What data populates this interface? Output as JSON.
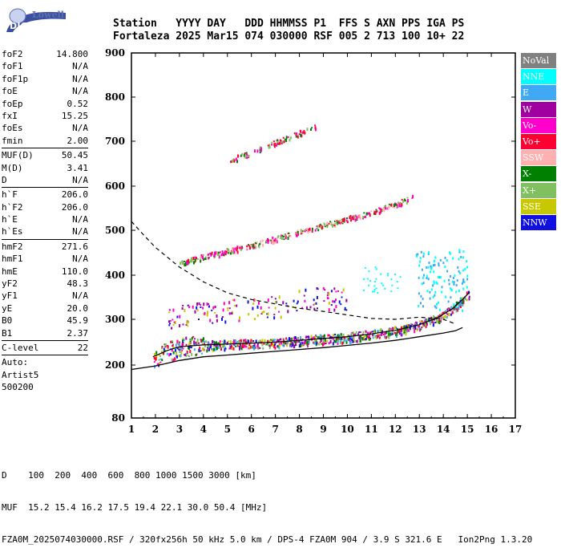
{
  "logo": {
    "top": "Lowell",
    "bottom": "DIGISONDE"
  },
  "header": {
    "labels": "Station   YYYY DAY   DDD HHMMSS P1  FFS S AXN PPS IGA PS",
    "values": "Fortaleza 2025 Mar15 074 030000 RSF 005 2 713 100 10+ 22"
  },
  "params": {
    "group1": [
      {
        "k": "foF2",
        "v": "14.800"
      },
      {
        "k": "foF1",
        "v": "N/A"
      },
      {
        "k": "foF1p",
        "v": "N/A"
      },
      {
        "k": "foE",
        "v": "N/A"
      },
      {
        "k": "foEp",
        "v": "0.52"
      },
      {
        "k": "fxI",
        "v": "15.25"
      },
      {
        "k": "foEs",
        "v": "N/A"
      },
      {
        "k": "fmin",
        "v": "2.00"
      }
    ],
    "group2": [
      {
        "k": "MUF(D)",
        "v": "50.45"
      },
      {
        "k": "M(D)",
        "v": "3.41"
      },
      {
        "k": "D",
        "v": "N/A"
      }
    ],
    "group3": [
      {
        "k": "h`F",
        "v": "206.0"
      },
      {
        "k": "h`F2",
        "v": "206.0"
      },
      {
        "k": "h`E",
        "v": "N/A"
      },
      {
        "k": "h`Es",
        "v": "N/A"
      }
    ],
    "group4": [
      {
        "k": "hmF2",
        "v": "271.6"
      },
      {
        "k": "hmF1",
        "v": "N/A"
      },
      {
        "k": "hmE",
        "v": "110.0"
      },
      {
        "k": "yF2",
        "v": "48.3"
      },
      {
        "k": "yF1",
        "v": "N/A"
      },
      {
        "k": "yE",
        "v": "20.0"
      },
      {
        "k": "B0",
        "v": "45.9"
      },
      {
        "k": "B1",
        "v": "2.37"
      }
    ],
    "group5": [
      {
        "k": "C-level",
        "v": "22"
      }
    ],
    "auto": [
      "Auto:",
      "Artist5",
      "500200"
    ]
  },
  "legend": [
    {
      "label": "NoVal",
      "color": "#808080"
    },
    {
      "label": "NNE",
      "color": "#00ffff"
    },
    {
      "label": "E",
      "color": "#3fa9f5"
    },
    {
      "label": "W",
      "color": "#a000a0"
    },
    {
      "label": "Vo-",
      "color": "#ff00cc"
    },
    {
      "label": "Vo+",
      "color": "#ff0033"
    },
    {
      "label": "SSW",
      "color": "#ffb0b0"
    },
    {
      "label": "X-",
      "color": "#008000"
    },
    {
      "label": "X+",
      "color": "#80c060"
    },
    {
      "label": "SSE",
      "color": "#c8c800"
    },
    {
      "label": "NNW",
      "color": "#1010e0"
    }
  ],
  "footer": {
    "d_row": "D    100  200  400  600  800 1000 1500 3000 [km]",
    "muf_row": "MUF  15.2 15.4 16.2 17.5 19.4 22.1 30.0 50.4 [MHz]",
    "file_row": "FZA0M_2025074030000.RSF / 320fx256h 50 kHz 5.0 km / DPS-4 FZA0M 904 / 3.9 S 321.6 E   Ion2Png 1.3.20"
  },
  "chart_data": {
    "type": "scatter",
    "xlim": [
      1,
      17
    ],
    "ylim": [
      80,
      900
    ],
    "x_ticks": [
      "1",
      "2",
      "3",
      "4",
      "5",
      "6",
      "7",
      "8",
      "9",
      "10",
      "11",
      "12",
      "13",
      "14",
      "15",
      "16",
      "17"
    ],
    "y_ticks": [
      "80",
      "200",
      "300",
      "400",
      "500",
      "600",
      "700",
      "800",
      "900"
    ],
    "y_tick_values": [
      80,
      200,
      300,
      400,
      500,
      600,
      700,
      800,
      900
    ],
    "scale_note": "y axis nonlinear near bottom (80 placed well below 200)",
    "traces": {
      "o_trace_F": [
        [
          1.9,
          218
        ],
        [
          2.5,
          232
        ],
        [
          3.0,
          240
        ],
        [
          4,
          244
        ],
        [
          5,
          246
        ],
        [
          6,
          248
        ],
        [
          7,
          250
        ],
        [
          8,
          254
        ],
        [
          9,
          258
        ],
        [
          10,
          262
        ],
        [
          11,
          268
        ],
        [
          12,
          276
        ],
        [
          13,
          288
        ],
        [
          13.8,
          305
        ],
        [
          14.4,
          325
        ],
        [
          14.8,
          345
        ],
        [
          15.1,
          362
        ]
      ],
      "second_hop": [
        [
          3.0,
          430
        ],
        [
          4,
          442
        ],
        [
          5,
          455
        ],
        [
          6,
          468
        ],
        [
          7,
          482
        ],
        [
          8,
          497
        ],
        [
          9,
          512
        ],
        [
          10,
          527
        ],
        [
          11,
          542
        ],
        [
          12,
          560
        ],
        [
          12.7,
          575
        ]
      ],
      "third_hop": [
        [
          5.1,
          660
        ],
        [
          6,
          675
        ],
        [
          7,
          698
        ],
        [
          8,
          720
        ],
        [
          8.7,
          736
        ]
      ],
      "upper_x_scatter": [
        [
          2.5,
          300
        ],
        [
          3,
          310
        ],
        [
          4,
          316
        ],
        [
          5,
          322
        ],
        [
          7,
          330
        ],
        [
          8,
          345
        ],
        [
          9,
          350
        ],
        [
          10,
          345
        ]
      ]
    },
    "profile_solid": [
      [
        1.0,
        190
      ],
      [
        2,
        198
      ],
      [
        3,
        210
      ],
      [
        4,
        218
      ],
      [
        5,
        222
      ],
      [
        6,
        226
      ],
      [
        7,
        230
      ],
      [
        8,
        234
      ],
      [
        9,
        238
      ],
      [
        10,
        243
      ],
      [
        11,
        248
      ],
      [
        12,
        254
      ],
      [
        13,
        262
      ],
      [
        14,
        270
      ],
      [
        14.5,
        275
      ],
      [
        14.8,
        282
      ]
    ],
    "profile_dashed": [
      [
        1.0,
        520
      ],
      [
        1.5,
        490
      ],
      [
        2,
        462
      ],
      [
        3,
        418
      ],
      [
        4,
        385
      ],
      [
        5,
        360
      ],
      [
        6,
        345
      ],
      [
        7,
        335
      ],
      [
        8,
        325
      ],
      [
        9,
        318
      ],
      [
        10,
        310
      ],
      [
        11,
        302
      ],
      [
        12,
        300
      ],
      [
        13,
        305
      ],
      [
        14,
        300
      ],
      [
        14.5,
        290
      ]
    ]
  }
}
